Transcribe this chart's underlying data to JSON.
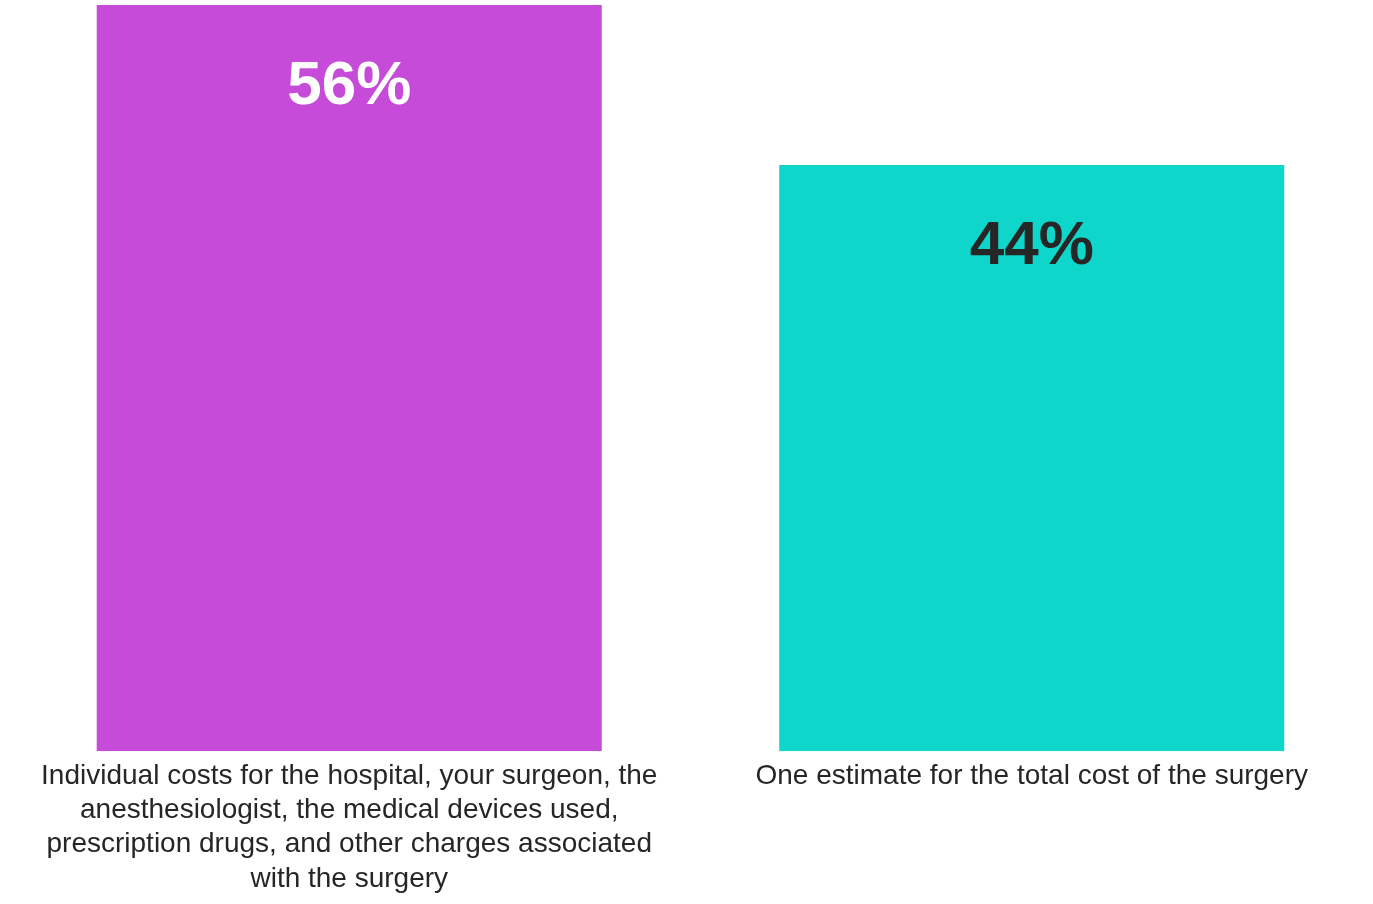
{
  "chart_data": {
    "type": "bar",
    "categories": [
      "Individual costs for the hospital, your surgeon, the anesthesiologist, the medical devices used, prescription drugs, and other charges associated with the surgery",
      "One estimate for the total cost of the surgery"
    ],
    "values": [
      56,
      44
    ],
    "colors": [
      "#c54bd8",
      "#0fd6cb"
    ],
    "value_labels": [
      "56%",
      "44%"
    ],
    "ylim": [
      0,
      56
    ],
    "tick_labels": "x",
    "grid": false,
    "legend": false
  }
}
